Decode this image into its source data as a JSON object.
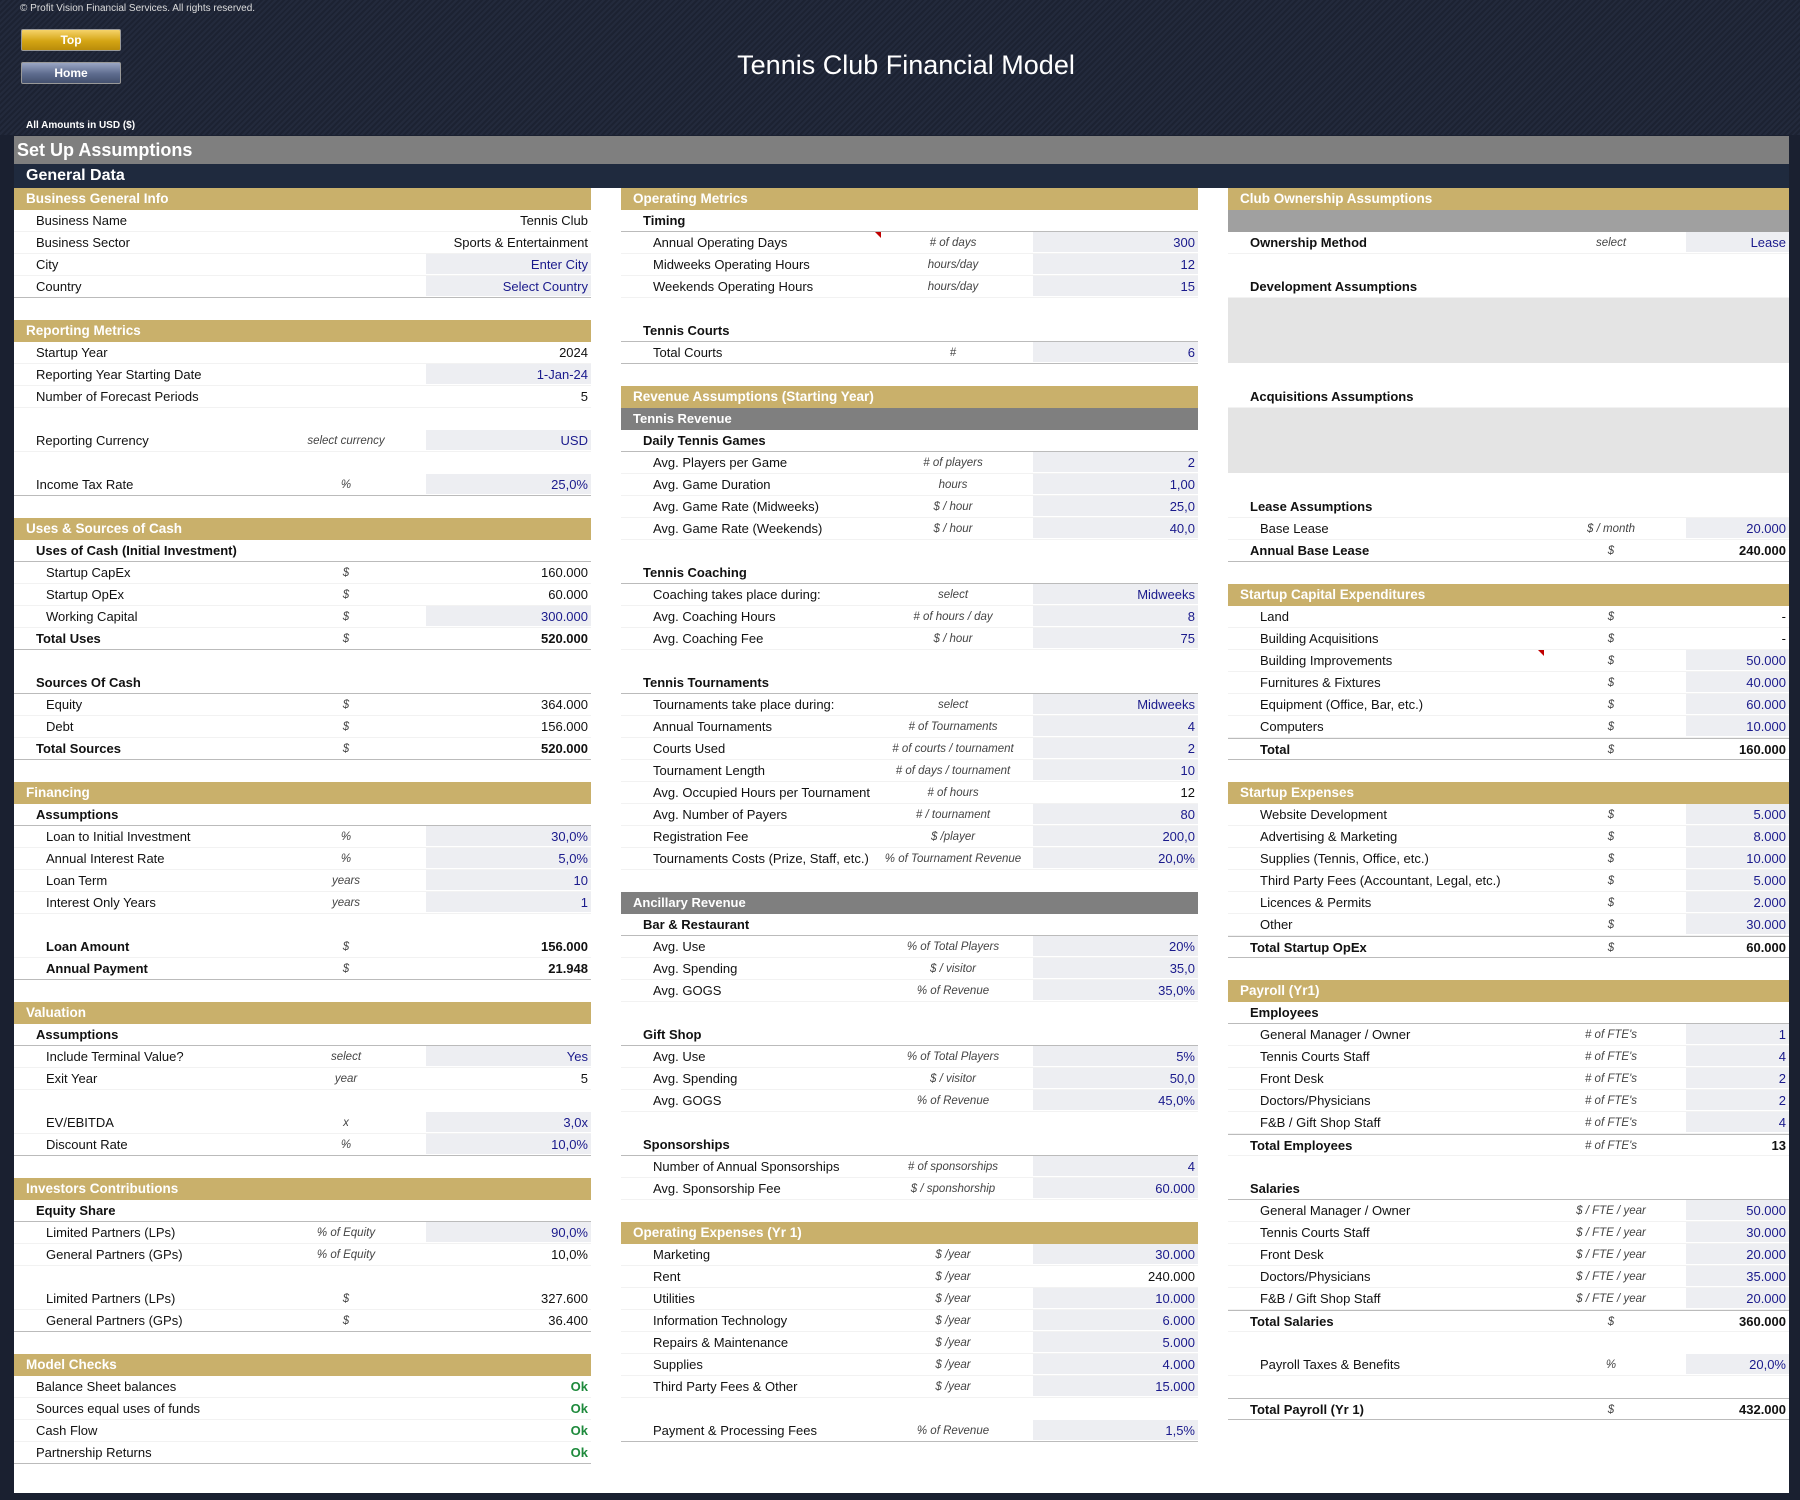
{
  "header": {
    "copyright": "© Profit Vision Financial Services. All rights reserved.",
    "top_button": "Top",
    "home_button": "Home",
    "title": "Tennis Club Financial Model",
    "amounts": "All Amounts in  USD ($)"
  },
  "setup_title": "Set Up Assumptions",
  "general_data": "General Data",
  "columns": [
    [
      {
        "t": "sec",
        "l": "Business General Info"
      },
      {
        "l": "Business Name",
        "v": "Tennis Club"
      },
      {
        "l": "Business Sector",
        "v": "Sports & Entertainment"
      },
      {
        "l": "City",
        "v": "Enter City",
        "in": 1
      },
      {
        "l": "Country",
        "v": "Select Country",
        "in": 1,
        "bl": 1
      },
      {
        "t": "gap"
      },
      {
        "t": "sec",
        "l": "Reporting Metrics"
      },
      {
        "l": "Startup Year",
        "v": "2024"
      },
      {
        "l": "Reporting Year Starting Date",
        "v": "1-Jan-24",
        "in": 1
      },
      {
        "l": "Number of Forecast Periods",
        "v": "5"
      },
      {
        "t": "gap"
      },
      {
        "l": "Reporting Currency",
        "u": "select currency",
        "v": "USD",
        "in": 1
      },
      {
        "t": "gap"
      },
      {
        "l": "Income Tax Rate",
        "u": "%",
        "v": "25,0%",
        "in": 1,
        "bl": 1
      },
      {
        "t": "gap"
      },
      {
        "t": "sec",
        "l": "Uses & Sources of Cash"
      },
      {
        "l": "Uses of Cash (Initial Investment)",
        "hd": 1,
        "bl": 1
      },
      {
        "l": "Startup CapEx",
        "u": "$",
        "v": "160.000",
        "i": 1
      },
      {
        "l": "Startup OpEx",
        "u": "$",
        "v": "60.000",
        "i": 1
      },
      {
        "l": "Working Capital",
        "u": "$",
        "v": "300.000",
        "in": 1,
        "i": 1
      },
      {
        "l": "Total Uses",
        "u": "$",
        "v": "520.000",
        "tot": 1,
        "bl": 1
      },
      {
        "t": "gap"
      },
      {
        "l": "Sources Of Cash",
        "hd": 1,
        "bl": 1
      },
      {
        "l": "Equity",
        "u": "$",
        "v": "364.000",
        "i": 1
      },
      {
        "l": "Debt",
        "u": "$",
        "v": "156.000",
        "i": 1
      },
      {
        "l": "Total Sources",
        "u": "$",
        "v": "520.000",
        "tot": 1,
        "bl": 1
      },
      {
        "t": "gap"
      },
      {
        "t": "sec",
        "l": "Financing"
      },
      {
        "l": "Assumptions",
        "hd": 1,
        "bl": 1
      },
      {
        "l": "Loan to Initial Investment",
        "u": "%",
        "v": "30,0%",
        "in": 1,
        "i": 1
      },
      {
        "l": "Annual Interest Rate",
        "u": "%",
        "v": "5,0%",
        "in": 1,
        "i": 1
      },
      {
        "l": "Loan Term",
        "u": "years",
        "v": "10",
        "in": 1,
        "i": 1
      },
      {
        "l": "Interest Only Years",
        "u": "years",
        "v": "1",
        "in": 1,
        "i": 1
      },
      {
        "t": "gap"
      },
      {
        "l": "Loan Amount",
        "u": "$",
        "v": "156.000",
        "tot": 1,
        "i": 1
      },
      {
        "l": "Annual Payment",
        "u": "$",
        "v": "21.948",
        "tot": 1,
        "i": 1,
        "bl": 1
      },
      {
        "t": "gap"
      },
      {
        "t": "sec",
        "l": "Valuation"
      },
      {
        "l": "Assumptions",
        "hd": 1,
        "bl": 1
      },
      {
        "l": "Include Terminal Value?",
        "u": "select",
        "v": "Yes",
        "in": 1,
        "i": 1
      },
      {
        "l": "Exit Year",
        "u": "year",
        "v": "5",
        "i": 1
      },
      {
        "t": "gap"
      },
      {
        "l": "EV/EBITDA",
        "u": "x",
        "v": "3,0x",
        "in": 1,
        "i": 1
      },
      {
        "l": "Discount Rate",
        "u": "%",
        "v": "10,0%",
        "in": 1,
        "i": 1,
        "bl": 1
      },
      {
        "t": "gap"
      },
      {
        "t": "sec",
        "l": "Investors Contributions"
      },
      {
        "l": "Equity Share",
        "hd": 1,
        "bl": 1
      },
      {
        "l": "Limited Partners (LPs)",
        "u": "% of Equity",
        "v": "90,0%",
        "in": 1,
        "i": 1
      },
      {
        "l": "General Partners (GPs)",
        "u": "% of Equity",
        "v": "10,0%",
        "i": 1
      },
      {
        "t": "gap"
      },
      {
        "l": "Limited Partners (LPs)",
        "u": "$",
        "v": "327.600",
        "i": 1
      },
      {
        "l": "General Partners (GPs)",
        "u": "$",
        "v": "36.400",
        "i": 1,
        "bl": 1
      },
      {
        "t": "gap"
      },
      {
        "t": "sec",
        "l": "Model Checks"
      },
      {
        "l": "Balance Sheet balances",
        "v": "Ok",
        "ok": 1
      },
      {
        "l": "Sources equal uses of funds",
        "v": "Ok",
        "ok": 1
      },
      {
        "l": "Cash Flow",
        "v": "Ok",
        "ok": 1
      },
      {
        "l": "Partnership Returns",
        "v": "Ok",
        "ok": 1,
        "bl": 1
      }
    ],
    [
      {
        "t": "sec",
        "l": "Operating Metrics"
      },
      {
        "l": "Timing",
        "hd": 1,
        "bl": 1
      },
      {
        "l": "Annual Operating Days",
        "u": "# of days",
        "v": "300",
        "in": 1,
        "i": 1,
        "mk": 1
      },
      {
        "l": "Midweeks Operating Hours",
        "u": "hours/day",
        "v": "12",
        "in": 1,
        "i": 1
      },
      {
        "l": "Weekends Operating Hours",
        "u": "hours/day",
        "v": "15",
        "in": 1,
        "i": 1
      },
      {
        "t": "gap"
      },
      {
        "l": "Tennis Courts",
        "hd": 1,
        "bl": 1
      },
      {
        "l": "Total Courts",
        "u": "#",
        "v": "6",
        "in": 1,
        "i": 1,
        "bl": 1
      },
      {
        "t": "gap"
      },
      {
        "t": "sec",
        "l": "Revenue Assumptions (Starting Year)"
      },
      {
        "t": "sub",
        "l": "Tennis Revenue"
      },
      {
        "l": "Daily Tennis Games",
        "hd": 1,
        "bl": 1
      },
      {
        "l": "Avg. Players per Game",
        "u": "# of players",
        "v": "2",
        "in": 1,
        "i": 1
      },
      {
        "l": "Avg. Game Duration",
        "u": "hours",
        "v": "1,00",
        "in": 1,
        "i": 1
      },
      {
        "l": "Avg. Game Rate (Midweeks)",
        "u": "$ / hour",
        "v": "25,0",
        "in": 1,
        "i": 1
      },
      {
        "l": "Avg. Game Rate (Weekends)",
        "u": "$ / hour",
        "v": "40,0",
        "in": 1,
        "i": 1
      },
      {
        "t": "gap"
      },
      {
        "l": "Tennis Coaching",
        "hd": 1,
        "bl": 1
      },
      {
        "l": "Coaching takes place during:",
        "u": "select",
        "v": "Midweeks",
        "in": 1,
        "i": 1
      },
      {
        "l": "Avg. Coaching Hours",
        "u": "# of hours / day",
        "v": "8",
        "in": 1,
        "i": 1
      },
      {
        "l": "Avg. Coaching Fee",
        "u": "$ / hour",
        "v": "75",
        "in": 1,
        "i": 1
      },
      {
        "t": "gap"
      },
      {
        "l": "Tennis Tournaments",
        "hd": 1,
        "bl": 1
      },
      {
        "l": "Tournaments take place during:",
        "u": "select",
        "v": "Midweeks",
        "in": 1,
        "i": 1
      },
      {
        "l": "Annual Tournaments",
        "u": "# of Tournaments",
        "v": "4",
        "in": 1,
        "i": 1
      },
      {
        "l": "Courts Used",
        "u": "# of courts / tournament",
        "v": "2",
        "in": 1,
        "i": 1
      },
      {
        "l": "Tournament Length",
        "u": "# of days / tournament",
        "v": "10",
        "in": 1,
        "i": 1
      },
      {
        "l": "Avg. Occupied Hours per Tournament Day",
        "u": "# of hours",
        "v": "12",
        "i": 1
      },
      {
        "l": "Avg. Number of Payers",
        "u": "# / tournament",
        "v": "80",
        "in": 1,
        "i": 1
      },
      {
        "l": "Registration Fee",
        "u": "$ /player",
        "v": "200,0",
        "in": 1,
        "i": 1
      },
      {
        "l": "Tournaments Costs (Prize, Staff, etc.)",
        "u": "% of Tournament Revenue",
        "v": "20,0%",
        "in": 1,
        "i": 1
      },
      {
        "t": "gap"
      },
      {
        "t": "sub",
        "l": "Ancillary Revenue"
      },
      {
        "l": "Bar & Restaurant",
        "hd": 1,
        "bl": 1
      },
      {
        "l": "Avg. Use",
        "u": "% of Total Players",
        "v": "20%",
        "in": 1,
        "i": 1
      },
      {
        "l": "Avg. Spending",
        "u": "$ / visitor",
        "v": "35,0",
        "in": 1,
        "i": 1
      },
      {
        "l": "Avg. GOGS",
        "u": "% of Revenue",
        "v": "35,0%",
        "in": 1,
        "i": 1
      },
      {
        "t": "gap"
      },
      {
        "l": "Gift Shop",
        "hd": 1,
        "bl": 1
      },
      {
        "l": "Avg. Use",
        "u": "% of Total Players",
        "v": "5%",
        "in": 1,
        "i": 1
      },
      {
        "l": "Avg. Spending",
        "u": "$ / visitor",
        "v": "50,0",
        "in": 1,
        "i": 1
      },
      {
        "l": "Avg. GOGS",
        "u": "% of Revenue",
        "v": "45,0%",
        "in": 1,
        "i": 1
      },
      {
        "t": "gap"
      },
      {
        "l": "Sponsorships",
        "hd": 1,
        "bl": 1
      },
      {
        "l": "Number of Annual Sponsorships",
        "u": "# of sponsorships",
        "v": "4",
        "in": 1,
        "i": 1
      },
      {
        "l": "Avg. Sponsorship Fee",
        "u": "$ / sponshorship",
        "v": "60.000",
        "in": 1,
        "i": 1
      },
      {
        "t": "gap"
      },
      {
        "t": "sec",
        "l": "Operating Expenses (Yr 1)"
      },
      {
        "l": "Marketing",
        "u": "$ /year",
        "v": "30.000",
        "in": 1,
        "i": 1
      },
      {
        "l": "Rent",
        "u": "$ /year",
        "v": "240.000",
        "i": 1
      },
      {
        "l": "Utilities",
        "u": "$ /year",
        "v": "10.000",
        "in": 1,
        "i": 1
      },
      {
        "l": "Information Technology",
        "u": "$ /year",
        "v": "6.000",
        "in": 1,
        "i": 1
      },
      {
        "l": "Repairs & Maintenance",
        "u": "$ /year",
        "v": "5.000",
        "in": 1,
        "i": 1
      },
      {
        "l": "Supplies",
        "u": "$ /year",
        "v": "4.000",
        "in": 1,
        "i": 1
      },
      {
        "l": "Third Party Fees & Other",
        "u": "$ /year",
        "v": "15.000",
        "in": 1,
        "i": 1
      },
      {
        "t": "gap"
      },
      {
        "l": "Payment & Processing Fees",
        "u": "% of Revenue",
        "v": "1,5%",
        "in": 1,
        "i": 1,
        "bl": 1
      }
    ],
    [
      {
        "t": "sec",
        "l": "Club Ownership Assumptions"
      },
      {
        "t": "greybar"
      },
      {
        "l": "Ownership Method",
        "u": "select",
        "v": "Lease",
        "in": 1,
        "hd": 1
      },
      {
        "t": "gap"
      },
      {
        "l": "Development Assumptions",
        "hd": 1
      },
      {
        "t": "box"
      },
      {
        "t": "gap"
      },
      {
        "l": "Acquisitions Assumptions",
        "hd": 1
      },
      {
        "t": "box"
      },
      {
        "t": "gap"
      },
      {
        "l": "Lease Assumptions",
        "hd": 1
      },
      {
        "l": "Base Lease",
        "u": "$ / month",
        "v": "20.000",
        "in": 1,
        "i": 1
      },
      {
        "l": "Annual Base Lease",
        "u": "$",
        "v": "240.000",
        "tot": 1,
        "bl": 1
      },
      {
        "t": "gap"
      },
      {
        "t": "sec",
        "l": "Startup Capital Expenditures"
      },
      {
        "l": "Land",
        "u": "$",
        "v": "-",
        "i": 1
      },
      {
        "l": "Building Acquisitions",
        "u": "$",
        "v": "-",
        "i": 1
      },
      {
        "l": "Building Improvements",
        "u": "$",
        "v": "50.000",
        "in": 1,
        "i": 1,
        "mk": 1
      },
      {
        "l": "Furnitures & Fixtures",
        "u": "$",
        "v": "40.000",
        "in": 1,
        "i": 1
      },
      {
        "l": "Equipment (Office, Bar, etc.)",
        "u": "$",
        "v": "60.000",
        "in": 1,
        "i": 1
      },
      {
        "l": "Computers",
        "u": "$",
        "v": "10.000",
        "in": 1,
        "i": 1
      },
      {
        "l": "Total",
        "u": "$",
        "v": "160.000",
        "tot": 1,
        "i": 1,
        "bl": 1,
        "bt": 1
      },
      {
        "t": "gap"
      },
      {
        "t": "sec",
        "l": "Startup Expenses"
      },
      {
        "l": "Website Development",
        "u": "$",
        "v": "5.000",
        "in": 1,
        "i": 1
      },
      {
        "l": "Advertising & Marketing",
        "u": "$",
        "v": "8.000",
        "in": 1,
        "i": 1
      },
      {
        "l": "Supplies (Tennis, Office, etc.)",
        "u": "$",
        "v": "10.000",
        "in": 1,
        "i": 1
      },
      {
        "l": "Third Party Fees (Accountant, Legal, etc.)",
        "u": "$",
        "v": "5.000",
        "in": 1,
        "i": 1
      },
      {
        "l": "Licences & Permits",
        "u": "$",
        "v": "2.000",
        "in": 1,
        "i": 1
      },
      {
        "l": "Other",
        "u": "$",
        "v": "30.000",
        "in": 1,
        "i": 1
      },
      {
        "l": "Total Startup OpEx",
        "u": "$",
        "v": "60.000",
        "tot": 1,
        "bl": 1,
        "bt": 1
      },
      {
        "t": "gap"
      },
      {
        "t": "sec",
        "l": "Payroll (Yr1)"
      },
      {
        "l": "Employees",
        "hd": 1,
        "bl": 1
      },
      {
        "l": "General Manager / Owner",
        "u": "# of FTE's",
        "v": "1",
        "in": 1,
        "i": 1
      },
      {
        "l": "Tennis Courts Staff",
        "u": "# of FTE's",
        "v": "4",
        "in": 1,
        "i": 1
      },
      {
        "l": "Front Desk",
        "u": "# of FTE's",
        "v": "2",
        "in": 1,
        "i": 1
      },
      {
        "l": "Doctors/Physicians",
        "u": "# of FTE's",
        "v": "2",
        "in": 1,
        "i": 1
      },
      {
        "l": "F&B / Gift Shop Staff",
        "u": "# of FTE's",
        "v": "4",
        "in": 1,
        "i": 1
      },
      {
        "l": "Total Employees",
        "u": "# of FTE's",
        "v": "13",
        "tot": 1,
        "bt": 1
      },
      {
        "t": "gap"
      },
      {
        "l": "Salaries",
        "hd": 1,
        "bl": 1
      },
      {
        "l": "General Manager / Owner",
        "u": "$ / FTE /  year",
        "v": "50.000",
        "in": 1,
        "i": 1
      },
      {
        "l": "Tennis Courts Staff",
        "u": "$ / FTE /  year",
        "v": "30.000",
        "in": 1,
        "i": 1
      },
      {
        "l": "Front Desk",
        "u": "$ / FTE /  year",
        "v": "20.000",
        "in": 1,
        "i": 1
      },
      {
        "l": "Doctors/Physicians",
        "u": "$ / FTE /  year",
        "v": "35.000",
        "in": 1,
        "i": 1
      },
      {
        "l": "F&B / Gift Shop Staff",
        "u": "$ / FTE /  year",
        "v": "20.000",
        "in": 1,
        "i": 1
      },
      {
        "l": "Total Salaries",
        "u": "$",
        "v": "360.000",
        "tot": 1,
        "bt": 1
      },
      {
        "t": "gap"
      },
      {
        "l": "Payroll Taxes & Benefits",
        "u": "%",
        "v": "20,0%",
        "in": 1,
        "i": 1
      },
      {
        "t": "gap"
      },
      {
        "l": "Total Payroll (Yr 1)",
        "u": "$",
        "v": "432.000",
        "tot": 1,
        "bl": 1,
        "bt": 1
      }
    ]
  ]
}
